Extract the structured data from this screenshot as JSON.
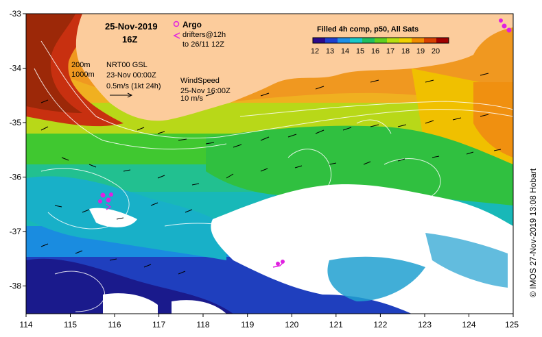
{
  "title": {
    "date": "25-Nov-2019",
    "hour": "16Z"
  },
  "legend_argo": {
    "label": "Argo",
    "drifters": "drifters@12h",
    "drifters_to": "to 26/11 12Z",
    "marker_color": "#e020e0"
  },
  "contours": {
    "depth1": "200m",
    "depth2": "1000m"
  },
  "currents": {
    "source": "NRT00 GSL",
    "date": "23-Nov 00:00Z",
    "scale": "0.5m/s (1kt 24h)"
  },
  "wind": {
    "label": "WindSpeed",
    "date": "25-Nov 16:00Z",
    "scale": "10 m/s"
  },
  "colorbar": {
    "title": "Filled 4h comp, p50, All Sats",
    "ticks": [
      "12",
      "13",
      "14",
      "15",
      "16",
      "17",
      "18",
      "19",
      "20"
    ],
    "colors": [
      "#2a0a8c",
      "#1e3fd0",
      "#1e90e8",
      "#18c8c8",
      "#20c060",
      "#60d020",
      "#b8e010",
      "#f0d000",
      "#f08c00",
      "#d84000",
      "#a00000"
    ]
  },
  "axes": {
    "x_ticks": [
      "114",
      "115",
      "116",
      "117",
      "118",
      "119",
      "120",
      "121",
      "122",
      "123",
      "124",
      "125"
    ],
    "y_ticks": [
      "-33",
      "-34",
      "-35",
      "-36",
      "-37",
      "-38"
    ]
  },
  "credit": "© IMOS 27-Nov-2019 13:08 Hobart",
  "colors": {
    "land": "#fccc9c",
    "no_data": "#ffffff",
    "contour": "#ffffff",
    "vector": "#000000"
  }
}
